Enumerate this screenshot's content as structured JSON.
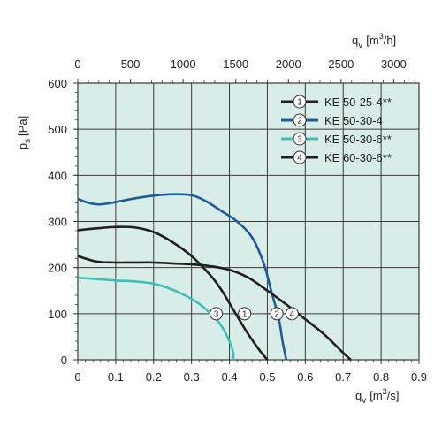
{
  "chart_data": {
    "type": "line",
    "colors": {
      "plot_bg": "#d9ede8",
      "grid": "#3a3a3a",
      "black": "#1f1f1f",
      "blue": "#1e5d9b",
      "teal": "#3fbfb3"
    },
    "x_axis": {
      "label_main": "q",
      "label_sub": "v",
      "label_unit_pre": "[m",
      "label_unit_sup": "3",
      "label_unit_post": "/s]",
      "ticks": [
        "0",
        "0.1",
        "0.2",
        "0.3",
        "0.4",
        "0.5",
        "0.6",
        "0.7",
        "0.8",
        "0.9"
      ],
      "range": [
        0,
        0.9
      ]
    },
    "x2_axis": {
      "label_main": "q",
      "label_sub": "v",
      "label_unit_pre": "[m",
      "label_unit_sup": "3",
      "label_unit_post": "/h]",
      "ticks": [
        "0",
        "500",
        "1000",
        "1500",
        "2000",
        "2500",
        "3000"
      ],
      "values": [
        0,
        500,
        1000,
        1500,
        2000,
        2500,
        3000
      ]
    },
    "y_axis": {
      "label_main": "p",
      "label_sub": "s",
      "label_unit": "[Pa]",
      "ticks": [
        "0",
        "100",
        "200",
        "300",
        "400",
        "500",
        "600"
      ],
      "range": [
        0,
        600
      ]
    },
    "grid": true,
    "legend_position": "top-right",
    "series": [
      {
        "name": "KE 50-25-4**",
        "marker": "1",
        "color_key": "black",
        "x": [
          0,
          0.05,
          0.1,
          0.15,
          0.2,
          0.25,
          0.3,
          0.35,
          0.38,
          0.42,
          0.45,
          0.48,
          0.5
        ],
        "y": [
          281,
          285,
          288,
          287,
          277,
          255,
          225,
          183,
          150,
          95,
          55,
          20,
          0
        ]
      },
      {
        "name": "KE 50-30-4",
        "marker": "2",
        "color_key": "blue",
        "x": [
          0,
          0.03,
          0.06,
          0.1,
          0.15,
          0.2,
          0.25,
          0.3,
          0.34,
          0.38,
          0.42,
          0.46,
          0.49,
          0.51,
          0.53,
          0.54,
          0.55
        ],
        "y": [
          349,
          340,
          337,
          342,
          350,
          356,
          359,
          357,
          343,
          322,
          300,
          265,
          210,
          150,
          90,
          40,
          0
        ]
      },
      {
        "name": "KE 50-30-6**",
        "marker": "3",
        "color_key": "teal",
        "x": [
          0,
          0.05,
          0.1,
          0.15,
          0.2,
          0.25,
          0.3,
          0.33,
          0.36,
          0.38,
          0.4,
          0.41,
          0.41
        ],
        "y": [
          178,
          175,
          172,
          170,
          165,
          152,
          132,
          115,
          93,
          72,
          40,
          15,
          0
        ]
      },
      {
        "name": "KE 60-30-6**",
        "marker": "4",
        "color_key": "black",
        "x": [
          0,
          0.05,
          0.1,
          0.15,
          0.2,
          0.25,
          0.3,
          0.35,
          0.4,
          0.45,
          0.5,
          0.55,
          0.6,
          0.65,
          0.7,
          0.72
        ],
        "y": [
          225,
          213,
          211,
          211,
          211,
          209,
          207,
          203,
          195,
          178,
          150,
          120,
          88,
          55,
          15,
          0
        ]
      }
    ],
    "markers": [
      {
        "label": "1",
        "x": 0.44,
        "y": 100
      },
      {
        "label": "2",
        "x": 0.525,
        "y": 100
      },
      {
        "label": "3",
        "x": 0.365,
        "y": 100
      },
      {
        "label": "4",
        "x": 0.565,
        "y": 100
      }
    ]
  }
}
